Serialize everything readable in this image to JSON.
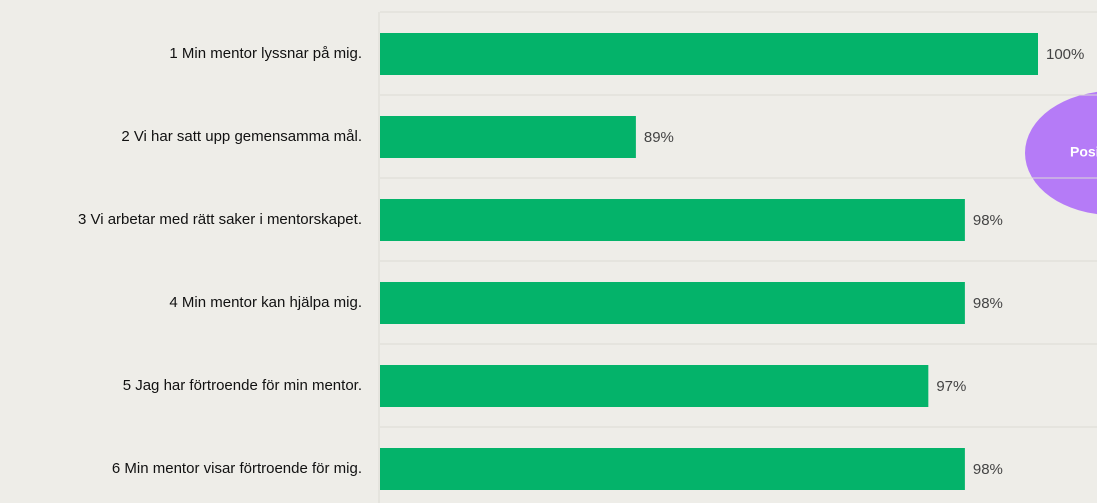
{
  "chart_data": {
    "type": "barh",
    "categories": [
      "1 Min mentor lyssnar på mig.",
      "2 Vi har satt upp gemensamma mål.",
      "3 Vi arbetar med rätt saker i mentorskapet.",
      "4 Min mentor kan hjälpa mig.",
      "5 Jag har förtroende för min mentor.",
      "6 Min mentor visar förtroende för mig."
    ],
    "values": [
      100,
      89,
      98,
      98,
      97,
      98
    ],
    "value_labels": [
      "100%",
      "89%",
      "98%",
      "98%",
      "97%",
      "98%"
    ],
    "color": "#04b36a",
    "xlim": [
      82,
      100
    ],
    "annotation": "Posi",
    "annotation_color": "#b57bf7"
  }
}
